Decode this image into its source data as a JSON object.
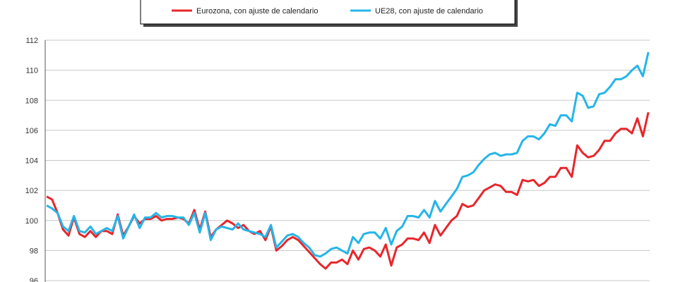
{
  "chart_data": {
    "type": "line",
    "title": "",
    "xlabel": "",
    "ylabel": "",
    "ylim": [
      96,
      112
    ],
    "yticks": [
      96,
      98,
      100,
      102,
      104,
      106,
      108,
      110,
      112
    ],
    "grid": "horizontal",
    "legend_position": "top",
    "series": [
      {
        "name": "Eurozona, con ajuste de calendario",
        "color": "#e8262b",
        "values": [
          101.6,
          101.4,
          100.5,
          99.4,
          99.0,
          100.2,
          99.1,
          98.9,
          99.3,
          98.9,
          99.3,
          99.3,
          99.1,
          100.4,
          99.0,
          99.6,
          100.3,
          99.8,
          100.1,
          100.1,
          100.3,
          100.0,
          100.1,
          100.1,
          100.2,
          100.1,
          99.8,
          100.7,
          99.4,
          100.6,
          98.9,
          99.4,
          99.7,
          100.0,
          99.8,
          99.5,
          99.7,
          99.3,
          99.1,
          99.3,
          98.7,
          99.6,
          98.0,
          98.3,
          98.7,
          98.9,
          98.7,
          98.3,
          97.9,
          97.5,
          97.1,
          96.8,
          97.2,
          97.2,
          97.4,
          97.1,
          98.0,
          97.4,
          98.1,
          98.2,
          98.0,
          97.6,
          98.4,
          97.0,
          98.2,
          98.4,
          98.8,
          98.8,
          98.7,
          99.2,
          98.5,
          99.7,
          99.0,
          99.5,
          100.0,
          100.3,
          101.1,
          100.9,
          101.0,
          101.5,
          102.0,
          102.2,
          102.4,
          102.3,
          101.9,
          101.9,
          101.7,
          102.7,
          102.6,
          102.7,
          102.3,
          102.5,
          102.9,
          102.9,
          103.5,
          103.5,
          102.9,
          105.0,
          104.5,
          104.2,
          104.3,
          104.7,
          105.3,
          105.3,
          105.8,
          106.1,
          106.1,
          105.8,
          106.8,
          105.6,
          107.2
        ]
      },
      {
        "name": "UE28, con ajuste de calendario",
        "color": "#25b5e9",
        "values": [
          101.0,
          100.8,
          100.5,
          99.6,
          99.3,
          100.3,
          99.3,
          99.2,
          99.6,
          99.1,
          99.3,
          99.5,
          99.3,
          100.3,
          98.8,
          99.6,
          100.4,
          99.5,
          100.2,
          100.2,
          100.5,
          100.2,
          100.3,
          100.3,
          100.2,
          100.2,
          99.7,
          100.5,
          99.2,
          100.5,
          98.7,
          99.4,
          99.6,
          99.5,
          99.4,
          99.8,
          99.4,
          99.3,
          99.2,
          99.1,
          98.9,
          99.7,
          98.2,
          98.6,
          99.0,
          99.1,
          98.9,
          98.5,
          98.2,
          97.7,
          97.6,
          97.8,
          98.1,
          98.2,
          98.0,
          97.8,
          98.9,
          98.5,
          99.1,
          99.2,
          99.2,
          98.8,
          99.5,
          98.4,
          99.3,
          99.6,
          100.3,
          100.3,
          100.2,
          100.7,
          100.2,
          101.3,
          100.6,
          101.1,
          101.6,
          102.1,
          102.9,
          103.0,
          103.2,
          103.7,
          104.1,
          104.4,
          104.5,
          104.3,
          104.4,
          104.4,
          104.5,
          105.3,
          105.6,
          105.6,
          105.4,
          105.8,
          106.4,
          106.3,
          107.0,
          107.0,
          106.6,
          108.5,
          108.3,
          107.5,
          107.6,
          108.4,
          108.5,
          108.9,
          109.4,
          109.4,
          109.6,
          110.0,
          110.3,
          109.6,
          111.2
        ]
      }
    ]
  }
}
